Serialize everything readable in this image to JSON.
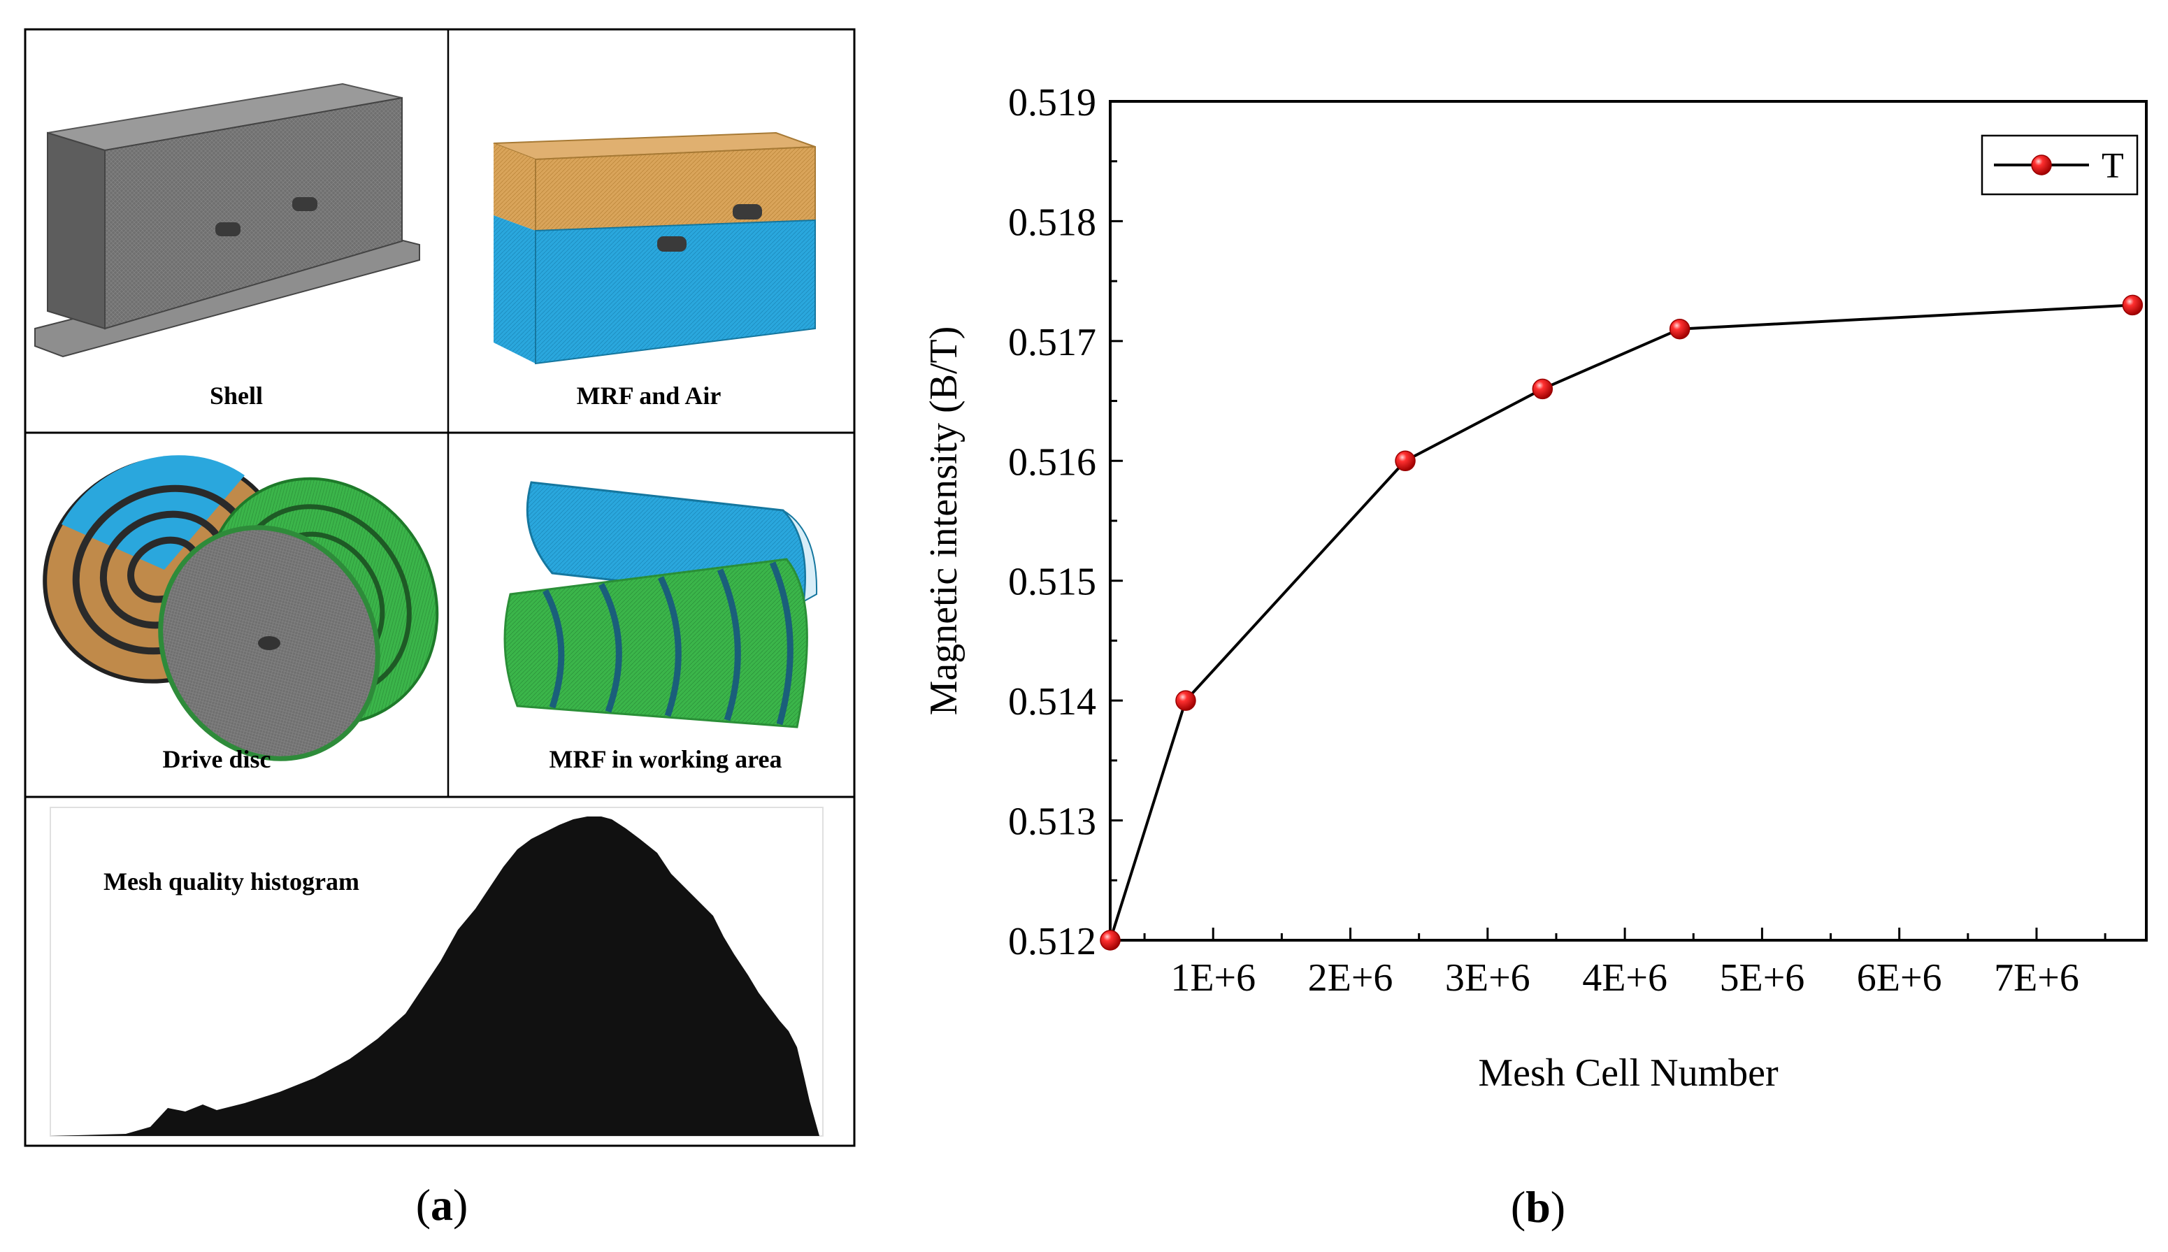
{
  "panel_a": {
    "cells": [
      {
        "caption": "Shell"
      },
      {
        "caption": "MRF and Air"
      },
      {
        "caption": "Drive disc"
      },
      {
        "caption": "MRF in working area"
      }
    ],
    "histogram_title": "Mesh quality histogram",
    "label_open": "(",
    "label_letter": "a",
    "label_close": ")"
  },
  "panel_b": {
    "label_open": "(",
    "label_letter": "b",
    "label_close": ")"
  },
  "colors": {
    "shell_gray": "#6e6e6e",
    "mrf_orange": "#d9a45a",
    "air_blue": "#2aa7dd",
    "disc_green": "#3bb54a",
    "line": "#000000",
    "marker": "#e00000"
  },
  "chart_data": {
    "type": "line",
    "xlabel": "Mesh Cell Number",
    "ylabel": "Magnetic intensity (B/T)",
    "xlim": [
      250000,
      7800000
    ],
    "ylim": [
      0.512,
      0.519
    ],
    "x_ticks": [
      1000000,
      2000000,
      3000000,
      4000000,
      5000000,
      6000000,
      7000000
    ],
    "x_tick_labels": [
      "1E+6",
      "2E+6",
      "3E+6",
      "4E+6",
      "5E+6",
      "6E+6",
      "7E+6"
    ],
    "y_ticks": [
      0.512,
      0.513,
      0.514,
      0.515,
      0.516,
      0.517,
      0.518,
      0.519
    ],
    "y_tick_labels": [
      "0.512",
      "0.513",
      "0.514",
      "0.515",
      "0.516",
      "0.517",
      "0.518",
      "0.519"
    ],
    "legend": {
      "position": "top-right",
      "entries": [
        "T"
      ]
    },
    "series": [
      {
        "name": "T",
        "x": [
          250000,
          800000,
          2400000,
          3400000,
          4400000,
          7700000
        ],
        "y": [
          0.512,
          0.514,
          0.516,
          0.5166,
          0.5171,
          0.5173
        ]
      }
    ]
  }
}
